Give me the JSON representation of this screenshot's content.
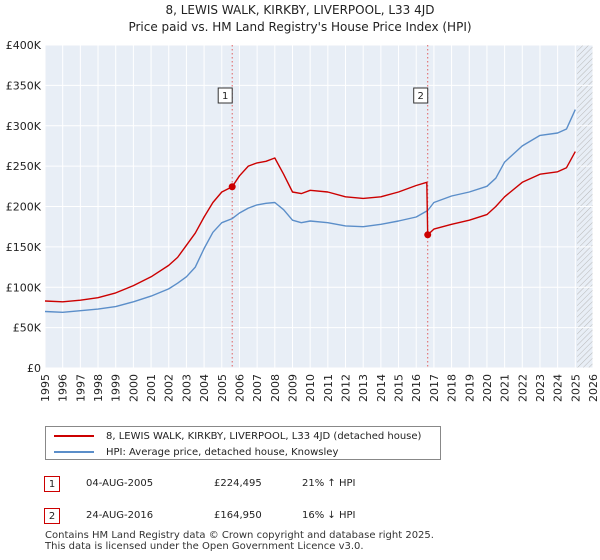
{
  "title_line1": "8, LEWIS WALK, KIRKBY, LIVERPOOL, L33 4JD",
  "title_line2": "Price paid vs. HM Land Registry's House Price Index (HPI)",
  "legend": {
    "property_label": "8, LEWIS WALK, KIRKBY, LIVERPOOL, L33 4JD (detached house)",
    "hpi_label": "HPI: Average price, detached house, Knowsley"
  },
  "transactions": [
    {
      "num": "1",
      "date": "04-AUG-2005",
      "price": "£224,495",
      "hpi_change": "21% ↑ HPI"
    },
    {
      "num": "2",
      "date": "24-AUG-2016",
      "price": "£164,950",
      "hpi_change": "16% ↓ HPI"
    }
  ],
  "footer_line1": "Contains HM Land Registry data © Crown copyright and database right 2025.",
  "footer_line2": "This data is licensed under the Open Government Licence v3.0.",
  "colors": {
    "property": "#cc0000",
    "hpi": "#5b8ec9",
    "grid_bg": "#e8eef6",
    "grid_line": "#ffffff"
  },
  "chart_data": {
    "type": "line",
    "title": "8, LEWIS WALK, KIRKBY, LIVERPOOL, L33 4JD",
    "subtitle": "Price paid vs. HM Land Registry's House Price Index (HPI)",
    "xlabel": "",
    "ylabel": "",
    "xlim": [
      1995,
      2026
    ],
    "ylim": [
      0,
      400000
    ],
    "x_ticks": [
      1995,
      1996,
      1997,
      1998,
      1999,
      2000,
      2001,
      2002,
      2003,
      2004,
      2005,
      2006,
      2007,
      2008,
      2009,
      2010,
      2011,
      2012,
      2013,
      2014,
      2015,
      2016,
      2017,
      2018,
      2019,
      2020,
      2021,
      2022,
      2023,
      2024,
      2025,
      2026
    ],
    "y_ticks": [
      0,
      50000,
      100000,
      150000,
      200000,
      250000,
      300000,
      350000,
      400000
    ],
    "y_tick_labels": [
      "£0",
      "£50K",
      "£100K",
      "£150K",
      "£200K",
      "£250K",
      "£300K",
      "£350K",
      "£400K"
    ],
    "forecast_start": 2025.1,
    "sale_markers": [
      {
        "label": "1",
        "x": 2005.59,
        "y": 224495
      },
      {
        "label": "2",
        "x": 2016.65,
        "y": 164950
      }
    ],
    "series": [
      {
        "name": "8, LEWIS WALK, KIRKBY, LIVERPOOL, L33 4JD (detached house)",
        "color": "#cc0000",
        "x": [
          1995,
          1996,
          1997,
          1998,
          1999,
          2000,
          2001,
          2002,
          2002.5,
          2003,
          2003.5,
          2004,
          2004.5,
          2005,
          2005.59,
          2006,
          2006.5,
          2007,
          2007.5,
          2008,
          2008.5,
          2009,
          2009.5,
          2010,
          2011,
          2012,
          2013,
          2014,
          2015,
          2016,
          2016.6,
          2016.65,
          2017,
          2018,
          2019,
          2020,
          2020.5,
          2021,
          2022,
          2023,
          2024,
          2024.5,
          2025
        ],
        "y": [
          83000,
          82000,
          84000,
          87000,
          93000,
          102000,
          113000,
          127000,
          137000,
          152000,
          167000,
          187000,
          205000,
          218000,
          224495,
          238000,
          250000,
          254000,
          256000,
          260000,
          240000,
          218000,
          216000,
          220000,
          218000,
          212000,
          210000,
          212000,
          218000,
          226000,
          230000,
          164950,
          172000,
          178000,
          183000,
          190000,
          200000,
          212000,
          230000,
          240000,
          243000,
          248000,
          268000
        ]
      },
      {
        "name": "HPI: Average price, detached house, Knowsley",
        "color": "#5b8ec9",
        "x": [
          1995,
          1996,
          1997,
          1998,
          1999,
          2000,
          2001,
          2002,
          2002.5,
          2003,
          2003.5,
          2004,
          2004.5,
          2005,
          2005.59,
          2006,
          2006.5,
          2007,
          2007.5,
          2008,
          2008.5,
          2009,
          2009.5,
          2010,
          2011,
          2012,
          2013,
          2014,
          2015,
          2016,
          2016.65,
          2017,
          2018,
          2019,
          2020,
          2020.5,
          2021,
          2022,
          2023,
          2024,
          2024.5,
          2025
        ],
        "y": [
          70000,
          69000,
          71000,
          73000,
          76000,
          82000,
          89000,
          98000,
          105000,
          113000,
          125000,
          148000,
          168000,
          180000,
          185000,
          192000,
          198000,
          202000,
          204000,
          205000,
          196000,
          183000,
          180000,
          182000,
          180000,
          176000,
          175000,
          178000,
          182000,
          187000,
          195000,
          205000,
          213000,
          218000,
          225000,
          235000,
          255000,
          275000,
          288000,
          291000,
          296000,
          320000
        ]
      }
    ]
  }
}
